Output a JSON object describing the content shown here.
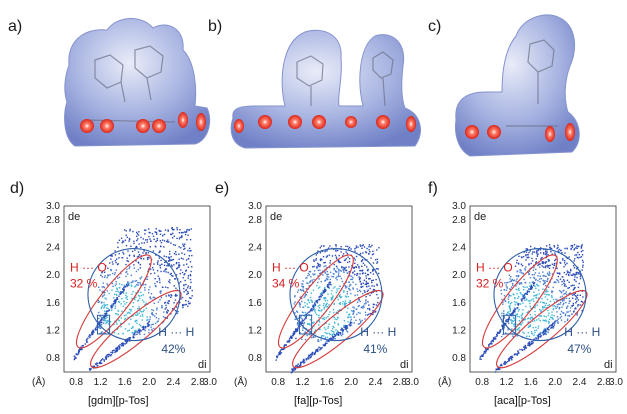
{
  "panels_top": [
    {
      "label": "a)"
    },
    {
      "label": "b)"
    },
    {
      "label": "c)"
    }
  ],
  "colors": {
    "surface_blue": "#7e8fcf",
    "surface_light": "#dfe4f4",
    "red_spot": "#e0301e",
    "contact_red": "#d62020",
    "contact_blue": "#2c4f86",
    "ellipse_red": "#d63a3a",
    "ellipse_blue": "#2f5fa8",
    "scatter": "#2a4bb8"
  },
  "fingerprints": [
    {
      "label": "d)",
      "caption": "[gdm][p-Tos]",
      "chart_data": {
        "type": "scatter",
        "xlabel": "di",
        "ylabel": "de",
        "x_unit": "(Å)",
        "xlim": [
          0.6,
          3.0
        ],
        "ylim": [
          0.6,
          3.0
        ],
        "xticks": [
          "0.8",
          "1.2",
          "1.6",
          "2.0",
          "2.4",
          "2.8",
          "3.0"
        ],
        "yticks": [
          "0.8",
          "1.2",
          "1.6",
          "2.0",
          "2.4",
          "2.8",
          "3.0"
        ],
        "contacts": [
          {
            "name": "H ··· O",
            "percent": "32 %",
            "value": 32
          },
          {
            "name": "H ··· H",
            "percent": "42%",
            "value": 42
          }
        ]
      }
    },
    {
      "label": "e)",
      "caption": "[fa][p-Tos]",
      "chart_data": {
        "type": "scatter",
        "xlabel": "di",
        "ylabel": "de",
        "x_unit": "(Å)",
        "xlim": [
          0.6,
          3.0
        ],
        "ylim": [
          0.6,
          3.0
        ],
        "xticks": [
          "0.8",
          "1.2",
          "1.6",
          "2.0",
          "2.4",
          "2.8",
          "3.0"
        ],
        "yticks": [
          "0.8",
          "1.2",
          "1.6",
          "2.0",
          "2.4",
          "2.8",
          "3.0"
        ],
        "contacts": [
          {
            "name": "H ··· O",
            "percent": "34 %",
            "value": 34
          },
          {
            "name": "H ··· H",
            "percent": "41%",
            "value": 41
          }
        ]
      }
    },
    {
      "label": "f)",
      "caption": "[aca][p-Tos]",
      "chart_data": {
        "type": "scatter",
        "xlabel": "di",
        "ylabel": "de",
        "x_unit": "(Å)",
        "xlim": [
          0.6,
          3.0
        ],
        "ylim": [
          0.6,
          3.0
        ],
        "xticks": [
          "0.8",
          "1.2",
          "1.6",
          "2.0",
          "2.4",
          "2.8",
          "3.0"
        ],
        "yticks": [
          "0.8",
          "1.2",
          "1.6",
          "2.0",
          "2.4",
          "2.8",
          "3.0"
        ],
        "contacts": [
          {
            "name": "H ··· O",
            "percent": "32 %",
            "value": 32
          },
          {
            "name": "H ··· H",
            "percent": "47%",
            "value": 47
          }
        ]
      }
    }
  ]
}
